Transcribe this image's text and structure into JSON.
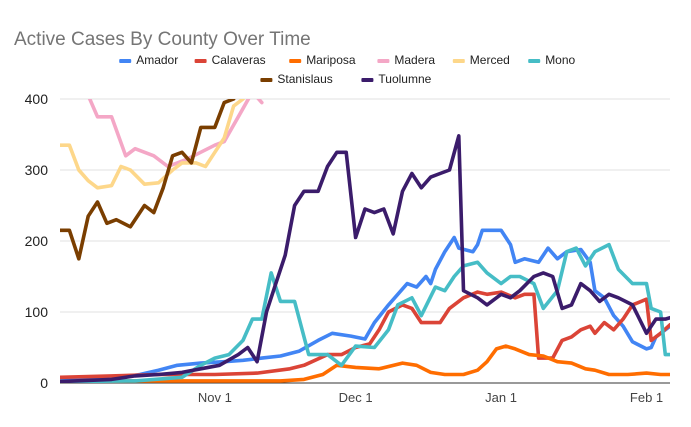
{
  "chart_data": {
    "type": "line",
    "title": "Active Cases By County Over Time",
    "xlabel": "",
    "ylabel": "",
    "ylim": [
      0,
      400
    ],
    "yticks": [
      0,
      100,
      200,
      300,
      400
    ],
    "x_domain": [
      "2020-09-29",
      "2021-02-06"
    ],
    "xticks": [
      {
        "date": "2020-11-01",
        "label": "Nov 1"
      },
      {
        "date": "2020-12-01",
        "label": "Dec 1"
      },
      {
        "date": "2021-01-01",
        "label": "Jan 1"
      },
      {
        "date": "2021-02-01",
        "label": "Feb 1"
      }
    ],
    "grid": "horizontal",
    "legend_position": "top",
    "series": [
      {
        "name": "Amador",
        "color": "#4285f4",
        "points": [
          [
            "2020-09-29",
            5
          ],
          [
            "2020-10-05",
            5
          ],
          [
            "2020-10-12",
            8
          ],
          [
            "2020-10-16",
            12
          ],
          [
            "2020-10-20",
            18
          ],
          [
            "2020-10-24",
            25
          ],
          [
            "2020-10-29",
            28
          ],
          [
            "2020-11-03",
            30
          ],
          [
            "2020-11-07",
            32
          ],
          [
            "2020-11-11",
            35
          ],
          [
            "2020-11-15",
            38
          ],
          [
            "2020-11-19",
            45
          ],
          [
            "2020-11-23",
            60
          ],
          [
            "2020-11-26",
            70
          ],
          [
            "2020-11-30",
            66
          ],
          [
            "2020-12-03",
            62
          ],
          [
            "2020-12-05",
            85
          ],
          [
            "2020-12-08",
            110
          ],
          [
            "2020-12-12",
            140
          ],
          [
            "2020-12-14",
            135
          ],
          [
            "2020-12-16",
            150
          ],
          [
            "2020-12-17",
            140
          ],
          [
            "2020-12-18",
            160
          ],
          [
            "2020-12-20",
            185
          ],
          [
            "2020-12-22",
            205
          ],
          [
            "2020-12-23",
            190
          ],
          [
            "2020-12-26",
            185
          ],
          [
            "2020-12-27",
            195
          ],
          [
            "2020-12-28",
            215
          ],
          [
            "2021-01-01",
            215
          ],
          [
            "2021-01-03",
            195
          ],
          [
            "2021-01-04",
            170
          ],
          [
            "2021-01-06",
            175
          ],
          [
            "2021-01-09",
            170
          ],
          [
            "2021-01-11",
            190
          ],
          [
            "2021-01-13",
            175
          ],
          [
            "2021-01-15",
            185
          ],
          [
            "2021-01-18",
            188
          ],
          [
            "2021-01-20",
            170
          ],
          [
            "2021-01-21",
            130
          ],
          [
            "2021-01-23",
            120
          ],
          [
            "2021-01-25",
            95
          ],
          [
            "2021-01-27",
            80
          ],
          [
            "2021-01-29",
            58
          ],
          [
            "2021-02-01",
            48
          ],
          [
            "2021-02-02",
            50
          ],
          [
            "2021-02-03",
            65
          ],
          [
            "2021-02-05",
            75
          ],
          [
            "2021-02-06",
            80
          ]
        ]
      },
      {
        "name": "Calaveras",
        "color": "#db4437",
        "points": [
          [
            "2020-09-29",
            8
          ],
          [
            "2020-10-10",
            10
          ],
          [
            "2020-10-20",
            12
          ],
          [
            "2020-11-01",
            12
          ],
          [
            "2020-11-10",
            14
          ],
          [
            "2020-11-17",
            20
          ],
          [
            "2020-11-20",
            25
          ],
          [
            "2020-11-25",
            40
          ],
          [
            "2020-11-28",
            40
          ],
          [
            "2020-12-01",
            50
          ],
          [
            "2020-12-04",
            55
          ],
          [
            "2020-12-06",
            75
          ],
          [
            "2020-12-08",
            100
          ],
          [
            "2020-12-11",
            110
          ],
          [
            "2020-12-13",
            105
          ],
          [
            "2020-12-15",
            85
          ],
          [
            "2020-12-19",
            85
          ],
          [
            "2020-12-21",
            105
          ],
          [
            "2020-12-24",
            120
          ],
          [
            "2020-12-27",
            128
          ],
          [
            "2020-12-29",
            125
          ],
          [
            "2021-01-01",
            128
          ],
          [
            "2021-01-04",
            120
          ],
          [
            "2021-01-06",
            125
          ],
          [
            "2021-01-08",
            125
          ],
          [
            "2021-01-09",
            35
          ],
          [
            "2021-01-12",
            35
          ],
          [
            "2021-01-14",
            60
          ],
          [
            "2021-01-16",
            65
          ],
          [
            "2021-01-18",
            75
          ],
          [
            "2021-01-20",
            80
          ],
          [
            "2021-01-21",
            70
          ],
          [
            "2021-01-23",
            85
          ],
          [
            "2021-01-25",
            75
          ],
          [
            "2021-01-27",
            90
          ],
          [
            "2021-01-29",
            110
          ],
          [
            "2021-02-01",
            118
          ],
          [
            "2021-02-02",
            60
          ],
          [
            "2021-02-04",
            70
          ],
          [
            "2021-02-06",
            82
          ]
        ]
      },
      {
        "name": "Mariposa",
        "color": "#ff6d00",
        "points": [
          [
            "2020-09-29",
            2
          ],
          [
            "2020-10-15",
            3
          ],
          [
            "2020-11-01",
            3
          ],
          [
            "2020-11-15",
            3
          ],
          [
            "2020-11-20",
            5
          ],
          [
            "2020-11-24",
            12
          ],
          [
            "2020-11-27",
            25
          ],
          [
            "2020-12-01",
            22
          ],
          [
            "2020-12-06",
            20
          ],
          [
            "2020-12-11",
            28
          ],
          [
            "2020-12-14",
            25
          ],
          [
            "2020-12-17",
            15
          ],
          [
            "2020-12-20",
            12
          ],
          [
            "2020-12-24",
            12
          ],
          [
            "2020-12-27",
            18
          ],
          [
            "2020-12-29",
            30
          ],
          [
            "2020-12-31",
            48
          ],
          [
            "2021-01-02",
            52
          ],
          [
            "2021-01-04",
            48
          ],
          [
            "2021-01-07",
            40
          ],
          [
            "2021-01-10",
            38
          ],
          [
            "2021-01-13",
            30
          ],
          [
            "2021-01-16",
            28
          ],
          [
            "2021-01-19",
            20
          ],
          [
            "2021-01-21",
            18
          ],
          [
            "2021-01-24",
            12
          ],
          [
            "2021-01-28",
            12
          ],
          [
            "2021-02-01",
            14
          ],
          [
            "2021-02-04",
            12
          ],
          [
            "2021-02-06",
            12
          ]
        ]
      },
      {
        "name": "Madera",
        "color": "#f4a7c6",
        "points": [
          [
            "2020-10-05",
            405
          ],
          [
            "2020-10-07",
            375
          ],
          [
            "2020-10-10",
            375
          ],
          [
            "2020-10-13",
            320
          ],
          [
            "2020-10-15",
            330
          ],
          [
            "2020-10-19",
            320
          ],
          [
            "2020-10-22",
            305
          ],
          [
            "2020-10-26",
            315
          ],
          [
            "2020-11-01",
            335
          ],
          [
            "2020-11-03",
            340
          ],
          [
            "2020-11-06",
            375
          ],
          [
            "2020-11-09",
            410
          ],
          [
            "2020-11-11",
            395
          ]
        ]
      },
      {
        "name": "Merced",
        "color": "#fdd78a",
        "points": [
          [
            "2020-09-29",
            335
          ],
          [
            "2020-10-01",
            335
          ],
          [
            "2020-10-03",
            300
          ],
          [
            "2020-10-05",
            285
          ],
          [
            "2020-10-07",
            275
          ],
          [
            "2020-10-10",
            278
          ],
          [
            "2020-10-12",
            305
          ],
          [
            "2020-10-14",
            300
          ],
          [
            "2020-10-17",
            280
          ],
          [
            "2020-10-20",
            282
          ],
          [
            "2020-10-23",
            300
          ],
          [
            "2020-10-25",
            310
          ],
          [
            "2020-10-28",
            310
          ],
          [
            "2020-10-30",
            305
          ],
          [
            "2020-11-01",
            325
          ],
          [
            "2020-11-03",
            345
          ],
          [
            "2020-11-05",
            390
          ],
          [
            "2020-11-07",
            400
          ]
        ]
      },
      {
        "name": "Mono",
        "color": "#46bdc6",
        "points": [
          [
            "2020-09-29",
            2
          ],
          [
            "2020-10-15",
            3
          ],
          [
            "2020-10-25",
            8
          ],
          [
            "2020-10-29",
            25
          ],
          [
            "2020-11-01",
            35
          ],
          [
            "2020-11-04",
            40
          ],
          [
            "2020-11-07",
            60
          ],
          [
            "2020-11-09",
            90
          ],
          [
            "2020-11-11",
            90
          ],
          [
            "2020-11-13",
            155
          ],
          [
            "2020-11-15",
            115
          ],
          [
            "2020-11-18",
            115
          ],
          [
            "2020-11-21",
            40
          ],
          [
            "2020-11-25",
            40
          ],
          [
            "2020-11-28",
            25
          ],
          [
            "2020-12-01",
            52
          ],
          [
            "2020-12-05",
            50
          ],
          [
            "2020-12-08",
            75
          ],
          [
            "2020-12-10",
            110
          ],
          [
            "2020-12-13",
            120
          ],
          [
            "2020-12-15",
            95
          ],
          [
            "2020-12-18",
            135
          ],
          [
            "2020-12-20",
            130
          ],
          [
            "2020-12-22",
            150
          ],
          [
            "2020-12-24",
            165
          ],
          [
            "2020-12-27",
            170
          ],
          [
            "2020-12-29",
            155
          ],
          [
            "2021-01-01",
            140
          ],
          [
            "2021-01-03",
            150
          ],
          [
            "2021-01-05",
            150
          ],
          [
            "2021-01-08",
            140
          ],
          [
            "2021-01-10",
            105
          ],
          [
            "2021-01-13",
            130
          ],
          [
            "2021-01-15",
            185
          ],
          [
            "2021-01-17",
            190
          ],
          [
            "2021-01-19",
            165
          ],
          [
            "2021-01-21",
            185
          ],
          [
            "2021-01-24",
            195
          ],
          [
            "2021-01-26",
            160
          ],
          [
            "2021-01-29",
            140
          ],
          [
            "2021-02-01",
            140
          ],
          [
            "2021-02-02",
            105
          ],
          [
            "2021-02-04",
            100
          ],
          [
            "2021-02-05",
            40
          ],
          [
            "2021-02-06",
            40
          ]
        ]
      },
      {
        "name": "Stanislaus",
        "color": "#7a3e00",
        "points": [
          [
            "2020-09-29",
            215
          ],
          [
            "2020-10-01",
            215
          ],
          [
            "2020-10-03",
            175
          ],
          [
            "2020-10-05",
            235
          ],
          [
            "2020-10-07",
            255
          ],
          [
            "2020-10-09",
            225
          ],
          [
            "2020-10-11",
            230
          ],
          [
            "2020-10-14",
            220
          ],
          [
            "2020-10-17",
            250
          ],
          [
            "2020-10-19",
            240
          ],
          [
            "2020-10-21",
            275
          ],
          [
            "2020-10-23",
            320
          ],
          [
            "2020-10-25",
            325
          ],
          [
            "2020-10-27",
            310
          ],
          [
            "2020-10-29",
            360
          ],
          [
            "2020-11-01",
            360
          ],
          [
            "2020-11-03",
            395
          ],
          [
            "2020-11-05",
            400
          ]
        ]
      },
      {
        "name": "Tuolumne",
        "color": "#3b1c6b",
        "points": [
          [
            "2020-09-29",
            2
          ],
          [
            "2020-10-10",
            5
          ],
          [
            "2020-10-15",
            10
          ],
          [
            "2020-10-20",
            12
          ],
          [
            "2020-10-25",
            15
          ],
          [
            "2020-10-29",
            20
          ],
          [
            "2020-11-02",
            25
          ],
          [
            "2020-11-06",
            40
          ],
          [
            "2020-11-08",
            50
          ],
          [
            "2020-11-10",
            30
          ],
          [
            "2020-11-12",
            100
          ],
          [
            "2020-11-14",
            140
          ],
          [
            "2020-11-16",
            180
          ],
          [
            "2020-11-18",
            250
          ],
          [
            "2020-11-20",
            270
          ],
          [
            "2020-11-23",
            270
          ],
          [
            "2020-11-25",
            305
          ],
          [
            "2020-11-27",
            325
          ],
          [
            "2020-11-29",
            325
          ],
          [
            "2020-12-01",
            205
          ],
          [
            "2020-12-03",
            245
          ],
          [
            "2020-12-05",
            240
          ],
          [
            "2020-12-07",
            245
          ],
          [
            "2020-12-09",
            210
          ],
          [
            "2020-12-11",
            270
          ],
          [
            "2020-12-13",
            295
          ],
          [
            "2020-12-15",
            275
          ],
          [
            "2020-12-17",
            290
          ],
          [
            "2020-12-19",
            295
          ],
          [
            "2020-12-21",
            300
          ],
          [
            "2020-12-23",
            348
          ],
          [
            "2020-12-24",
            130
          ],
          [
            "2020-12-27",
            120
          ],
          [
            "2020-12-29",
            110
          ],
          [
            "2021-01-01",
            125
          ],
          [
            "2021-01-03",
            120
          ],
          [
            "2021-01-05",
            130
          ],
          [
            "2021-01-08",
            150
          ],
          [
            "2021-01-10",
            155
          ],
          [
            "2021-01-12",
            150
          ],
          [
            "2021-01-14",
            105
          ],
          [
            "2021-01-16",
            110
          ],
          [
            "2021-01-18",
            140
          ],
          [
            "2021-01-20",
            130
          ],
          [
            "2021-01-22",
            115
          ],
          [
            "2021-01-24",
            125
          ],
          [
            "2021-01-26",
            120
          ],
          [
            "2021-01-29",
            110
          ],
          [
            "2021-02-01",
            70
          ],
          [
            "2021-02-03",
            90
          ],
          [
            "2021-02-05",
            90
          ],
          [
            "2021-02-06",
            92
          ]
        ]
      }
    ]
  }
}
